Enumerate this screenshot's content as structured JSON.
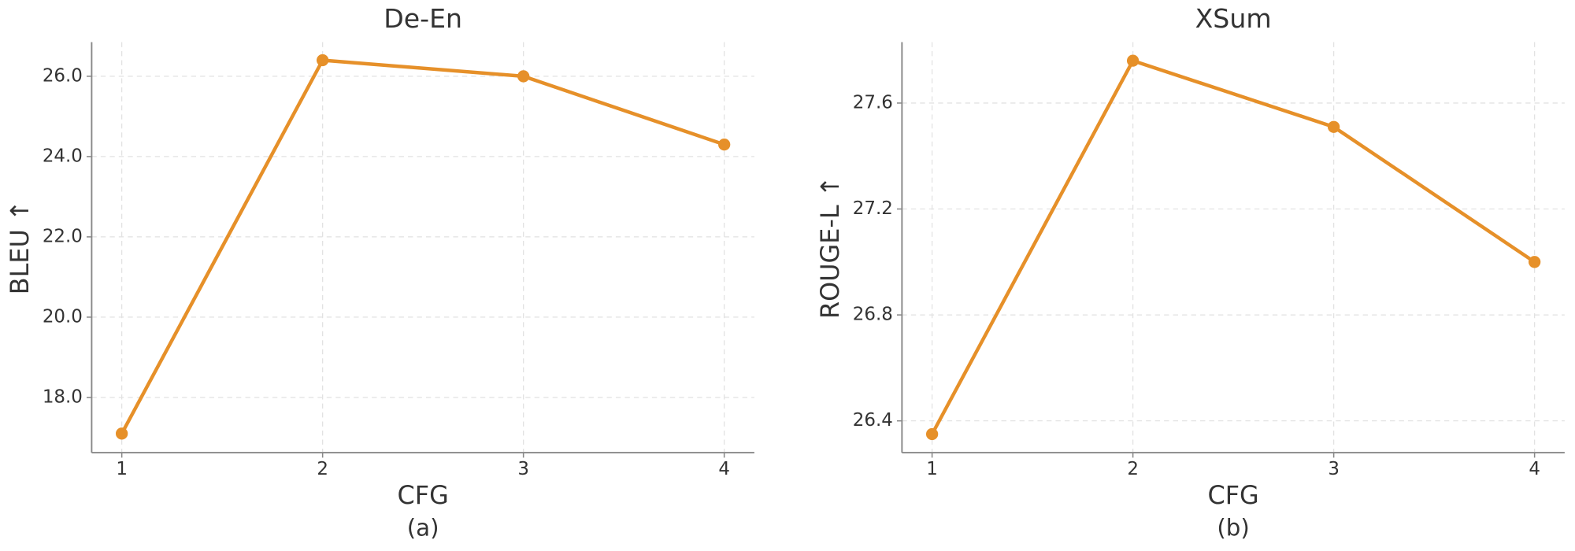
{
  "chart_data": [
    {
      "type": "line",
      "title": "De-En",
      "xlabel": "CFG",
      "ylabel": "BLEU ↑",
      "caption": "(a)",
      "x": [
        1,
        2,
        3,
        4
      ],
      "series": [
        {
          "color": "#e69029",
          "values": [
            17.1,
            26.4,
            26.0,
            24.3
          ]
        }
      ],
      "xlim": [
        0.85,
        4.15
      ],
      "xticks": [
        1,
        2,
        3,
        4
      ],
      "ylim": [
        16.625,
        26.85
      ],
      "yticks": [
        {
          "value": 18,
          "label": "18.0"
        },
        {
          "value": 20,
          "label": "20.0"
        },
        {
          "value": 22,
          "label": "22.0"
        },
        {
          "value": 24,
          "label": "24.0"
        },
        {
          "value": 26,
          "label": "26.0"
        }
      ],
      "grid": true
    },
    {
      "type": "line",
      "title": "XSum",
      "xlabel": "CFG",
      "ylabel": "ROUGE-L ↑",
      "caption": "(b)",
      "x": [
        1,
        2,
        3,
        4
      ],
      "series": [
        {
          "color": "#e69029",
          "values": [
            26.35,
            27.76,
            27.51,
            27.0
          ]
        }
      ],
      "xlim": [
        0.85,
        4.15
      ],
      "xticks": [
        1,
        2,
        3,
        4
      ],
      "ylim": [
        26.28,
        27.83
      ],
      "yticks": [
        26.4,
        26.8,
        27.2,
        27.6
      ],
      "grid": true
    }
  ]
}
